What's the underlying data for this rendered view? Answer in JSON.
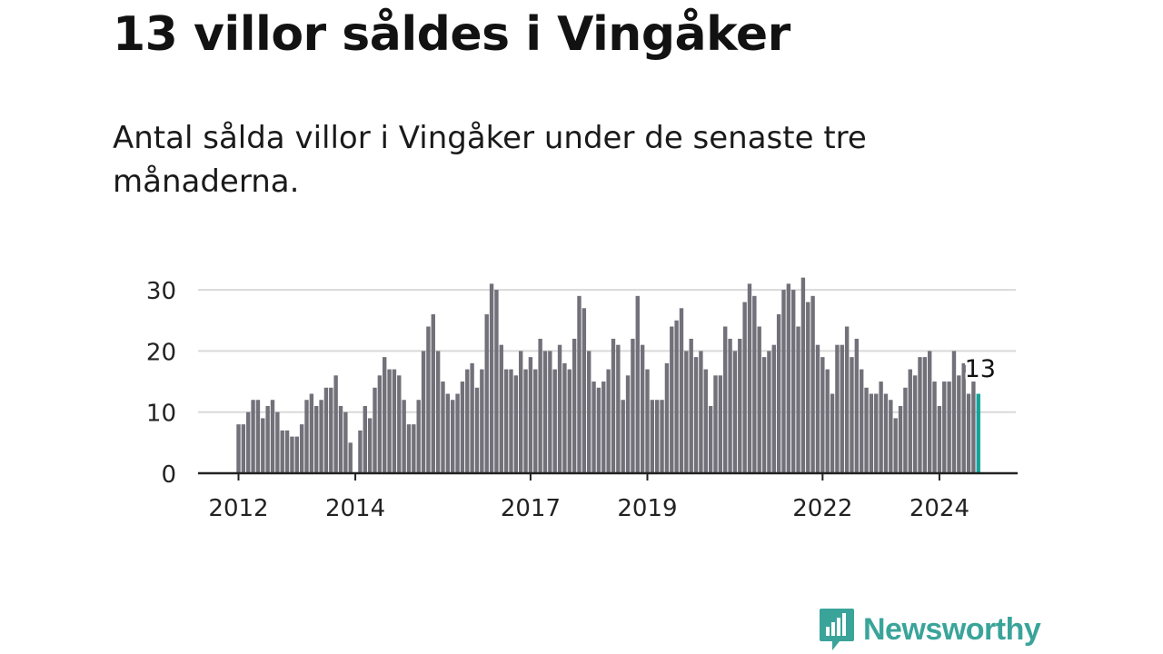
{
  "headline": "13 villor såldes i Vingåker",
  "subtitle": "Antal sålda villor i Vingåker under de senaste tre månaderna.",
  "brand": {
    "name": "Newsworthy",
    "icon": "newsworthy-logo-icon",
    "color": "#3aa49a"
  },
  "colors": {
    "bar": "#72717a",
    "highlight": "#16a39a",
    "grid": "#d9d9d9",
    "axis": "#222222",
    "text": "#222222"
  },
  "chart_data": {
    "type": "bar",
    "title": "",
    "xlabel": "",
    "ylabel": "",
    "ylim": [
      0,
      32
    ],
    "yticks": [
      0,
      10,
      20,
      30
    ],
    "x_tick_labels": [
      "2012",
      "2014",
      "2017",
      "2019",
      "2022",
      "2024"
    ],
    "grid": true,
    "start_month": "2012-01",
    "end_month": "2024-10",
    "values": [
      8,
      8,
      10,
      12,
      12,
      9,
      11,
      12,
      10,
      7,
      7,
      6,
      6,
      8,
      12,
      13,
      11,
      12,
      14,
      14,
      16,
      11,
      10,
      5,
      0,
      7,
      11,
      9,
      14,
      16,
      19,
      17,
      17,
      16,
      12,
      8,
      8,
      12,
      20,
      24,
      26,
      20,
      15,
      13,
      12,
      13,
      15,
      17,
      18,
      14,
      17,
      26,
      31,
      30,
      21,
      17,
      17,
      16,
      20,
      17,
      19,
      17,
      22,
      20,
      20,
      17,
      21,
      18,
      17,
      22,
      29,
      27,
      20,
      15,
      14,
      15,
      17,
      22,
      21,
      12,
      16,
      22,
      29,
      21,
      17,
      12,
      12,
      12,
      18,
      24,
      25,
      27,
      20,
      22,
      19,
      20,
      17,
      11,
      16,
      16,
      24,
      22,
      20,
      22,
      28,
      31,
      29,
      24,
      19,
      20,
      21,
      26,
      30,
      31,
      30,
      24,
      32,
      28,
      29,
      21,
      19,
      17,
      13,
      21,
      21,
      24,
      19,
      22,
      17,
      14,
      13,
      13,
      15,
      13,
      12,
      9,
      11,
      14,
      17,
      16,
      19,
      19,
      20,
      15,
      11,
      15,
      15,
      20,
      16,
      18,
      13,
      15,
      13
    ],
    "highlight_label": "13"
  }
}
